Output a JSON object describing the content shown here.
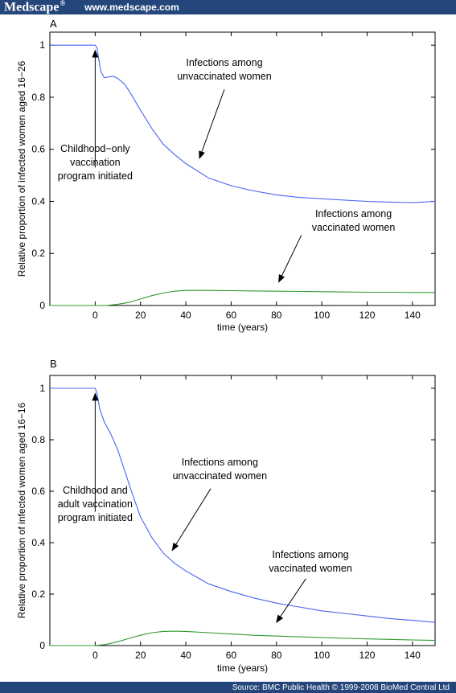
{
  "header": {
    "brand": "Medscape",
    "brand_mark": "®",
    "url": "www.medscape.com"
  },
  "footer": {
    "source": "Source: BMC Public Health © 1999-2008 BioMed Central Ltd"
  },
  "colors": {
    "bar": "#24467a",
    "unvaccinated": "#4a64f0",
    "vaccinated": "#2f9a2f"
  },
  "chart_data": [
    {
      "type": "line",
      "panel_label": "A",
      "xlabel": "time (years)",
      "ylabel": "Relative proportion of infected women aged 16−26",
      "xlim": [
        -20,
        150
      ],
      "ylim": [
        0,
        1.05
      ],
      "xticks": [
        0,
        20,
        40,
        60,
        80,
        100,
        120,
        140
      ],
      "yticks": [
        0,
        0.2,
        0.4,
        0.6,
        0.8,
        1
      ],
      "ytick_labels": [
        "0",
        "0.2",
        "0.4",
        "0.6",
        "0.8",
        "1"
      ],
      "series": [
        {
          "color": "#4a64f0",
          "x": [
            -20,
            0,
            0.8,
            1.5,
            2.5,
            4,
            6,
            8,
            10,
            13,
            16,
            20,
            25,
            30,
            35,
            40,
            50,
            60,
            70,
            80,
            90,
            100,
            110,
            120,
            130,
            140,
            150
          ],
          "y": [
            1.0,
            1.0,
            0.99,
            0.95,
            0.9,
            0.875,
            0.878,
            0.88,
            0.872,
            0.85,
            0.81,
            0.75,
            0.68,
            0.62,
            0.58,
            0.545,
            0.49,
            0.46,
            0.44,
            0.425,
            0.415,
            0.41,
            0.405,
            0.4,
            0.397,
            0.395,
            0.4
          ]
        },
        {
          "color": "#2f9a2f",
          "x": [
            -20,
            0,
            5,
            10,
            15,
            20,
            25,
            30,
            35,
            40,
            50,
            60,
            70,
            80,
            90,
            100,
            110,
            120,
            130,
            140,
            150
          ],
          "y": [
            0,
            0,
            0,
            0.005,
            0.012,
            0.025,
            0.038,
            0.048,
            0.055,
            0.058,
            0.058,
            0.057,
            0.056,
            0.055,
            0.054,
            0.053,
            0.052,
            0.051,
            0.051,
            0.05,
            0.05
          ]
        }
      ],
      "annotations": [
        {
          "lines": [
            "Childhood−only",
            "vaccination",
            "program initiated"
          ],
          "text_x": 0,
          "text_y": 0.59,
          "arrow_from": [
            0,
            0.53
          ],
          "arrow_to": [
            0,
            0.98
          ]
        },
        {
          "lines": [
            "Infections among",
            "unvaccinated women"
          ],
          "text_x": 57,
          "text_y": 0.92,
          "arrow_from": [
            57,
            0.83
          ],
          "arrow_to": [
            46,
            0.565
          ]
        },
        {
          "lines": [
            "Infections among",
            "vaccinated women"
          ],
          "text_x": 114,
          "text_y": 0.34,
          "arrow_from": [
            91,
            0.27
          ],
          "arrow_to": [
            81,
            0.09
          ]
        }
      ]
    },
    {
      "type": "line",
      "panel_label": "B",
      "xlabel": "time (years)",
      "ylabel": "Relative proportion of infected women aged 16−16",
      "xlim": [
        -20,
        150
      ],
      "ylim": [
        0,
        1.05
      ],
      "xticks": [
        0,
        20,
        40,
        60,
        80,
        100,
        120,
        140
      ],
      "yticks": [
        0,
        0.2,
        0.4,
        0.6,
        0.8,
        1
      ],
      "ytick_labels": [
        "0",
        "0.2",
        "0.4",
        "0.6",
        "0.8",
        "1"
      ],
      "series": [
        {
          "color": "#4a64f0",
          "x": [
            -20,
            0,
            0.8,
            2,
            4,
            7,
            10,
            13,
            16,
            20,
            25,
            30,
            35,
            40,
            50,
            60,
            70,
            80,
            90,
            100,
            110,
            120,
            130,
            140,
            150
          ],
          "y": [
            1.0,
            1.0,
            0.98,
            0.92,
            0.87,
            0.82,
            0.76,
            0.68,
            0.6,
            0.5,
            0.42,
            0.36,
            0.32,
            0.29,
            0.24,
            0.21,
            0.185,
            0.165,
            0.15,
            0.135,
            0.125,
            0.115,
            0.105,
            0.098,
            0.09
          ]
        },
        {
          "color": "#2f9a2f",
          "x": [
            -20,
            0,
            5,
            10,
            15,
            20,
            25,
            30,
            35,
            40,
            50,
            60,
            70,
            80,
            90,
            100,
            110,
            120,
            130,
            140,
            150
          ],
          "y": [
            0,
            0,
            0.005,
            0.015,
            0.028,
            0.04,
            0.05,
            0.055,
            0.056,
            0.055,
            0.05,
            0.045,
            0.04,
            0.037,
            0.034,
            0.031,
            0.028,
            0.026,
            0.024,
            0.022,
            0.02
          ]
        }
      ],
      "annotations": [
        {
          "lines": [
            "Childhood and",
            "adult vaccination",
            "program initiated"
          ],
          "text_x": 0,
          "text_y": 0.59,
          "arrow_from": [
            0,
            0.52
          ],
          "arrow_to": [
            0,
            0.98
          ]
        },
        {
          "lines": [
            "Infections among",
            "unvaccinated women"
          ],
          "text_x": 55,
          "text_y": 0.7,
          "arrow_from": [
            51,
            0.61
          ],
          "arrow_to": [
            34,
            0.37
          ]
        },
        {
          "lines": [
            "Infections among",
            "vaccinated women"
          ],
          "text_x": 95,
          "text_y": 0.34,
          "arrow_from": [
            93,
            0.26
          ],
          "arrow_to": [
            80,
            0.09
          ]
        }
      ]
    }
  ]
}
